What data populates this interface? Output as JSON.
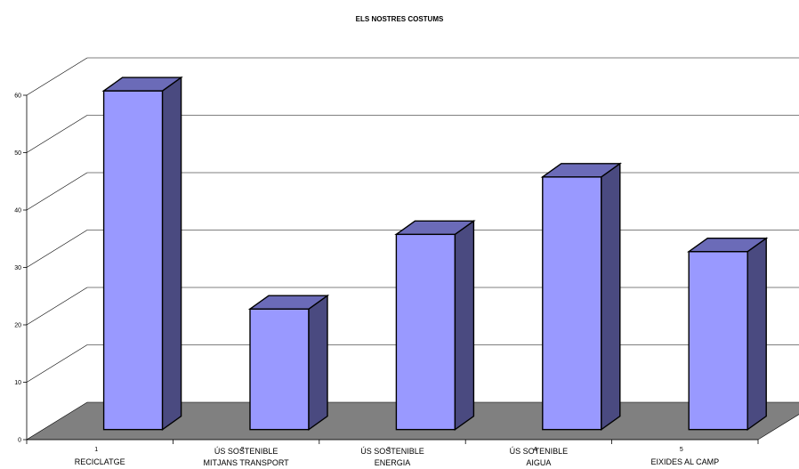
{
  "chart_data": {
    "type": "bar",
    "title": "ELS NOSTRES COSTUMS",
    "xlabel": "",
    "ylabel": "",
    "ylim": [
      0,
      60
    ],
    "yticks": [
      0,
      10,
      20,
      30,
      40,
      50,
      60
    ],
    "categories": [
      {
        "index": "1",
        "line1": "RECICLATGE",
        "line2": ""
      },
      {
        "index": "2",
        "line1": "ÚS SOSTENIBLE",
        "line2": "MITJANS TRANSPORT"
      },
      {
        "index": "3",
        "line1": "ÚS SOSTENIBLE",
        "line2": "ENERGIA"
      },
      {
        "index": "4",
        "line1": "ÚS SOTENIBLE",
        "line2": "AIGUA"
      },
      {
        "index": "5",
        "line1": "EIXIDES AL CAMP",
        "line2": ""
      }
    ],
    "values": [
      59,
      21,
      34,
      44,
      31
    ],
    "grid": true,
    "legend": "none",
    "colors": {
      "bar_front": "#9999ff",
      "bar_side": "#4a4a80",
      "bar_top": "#6b6bb8",
      "floor": "#808080",
      "grid": "#000000"
    }
  }
}
